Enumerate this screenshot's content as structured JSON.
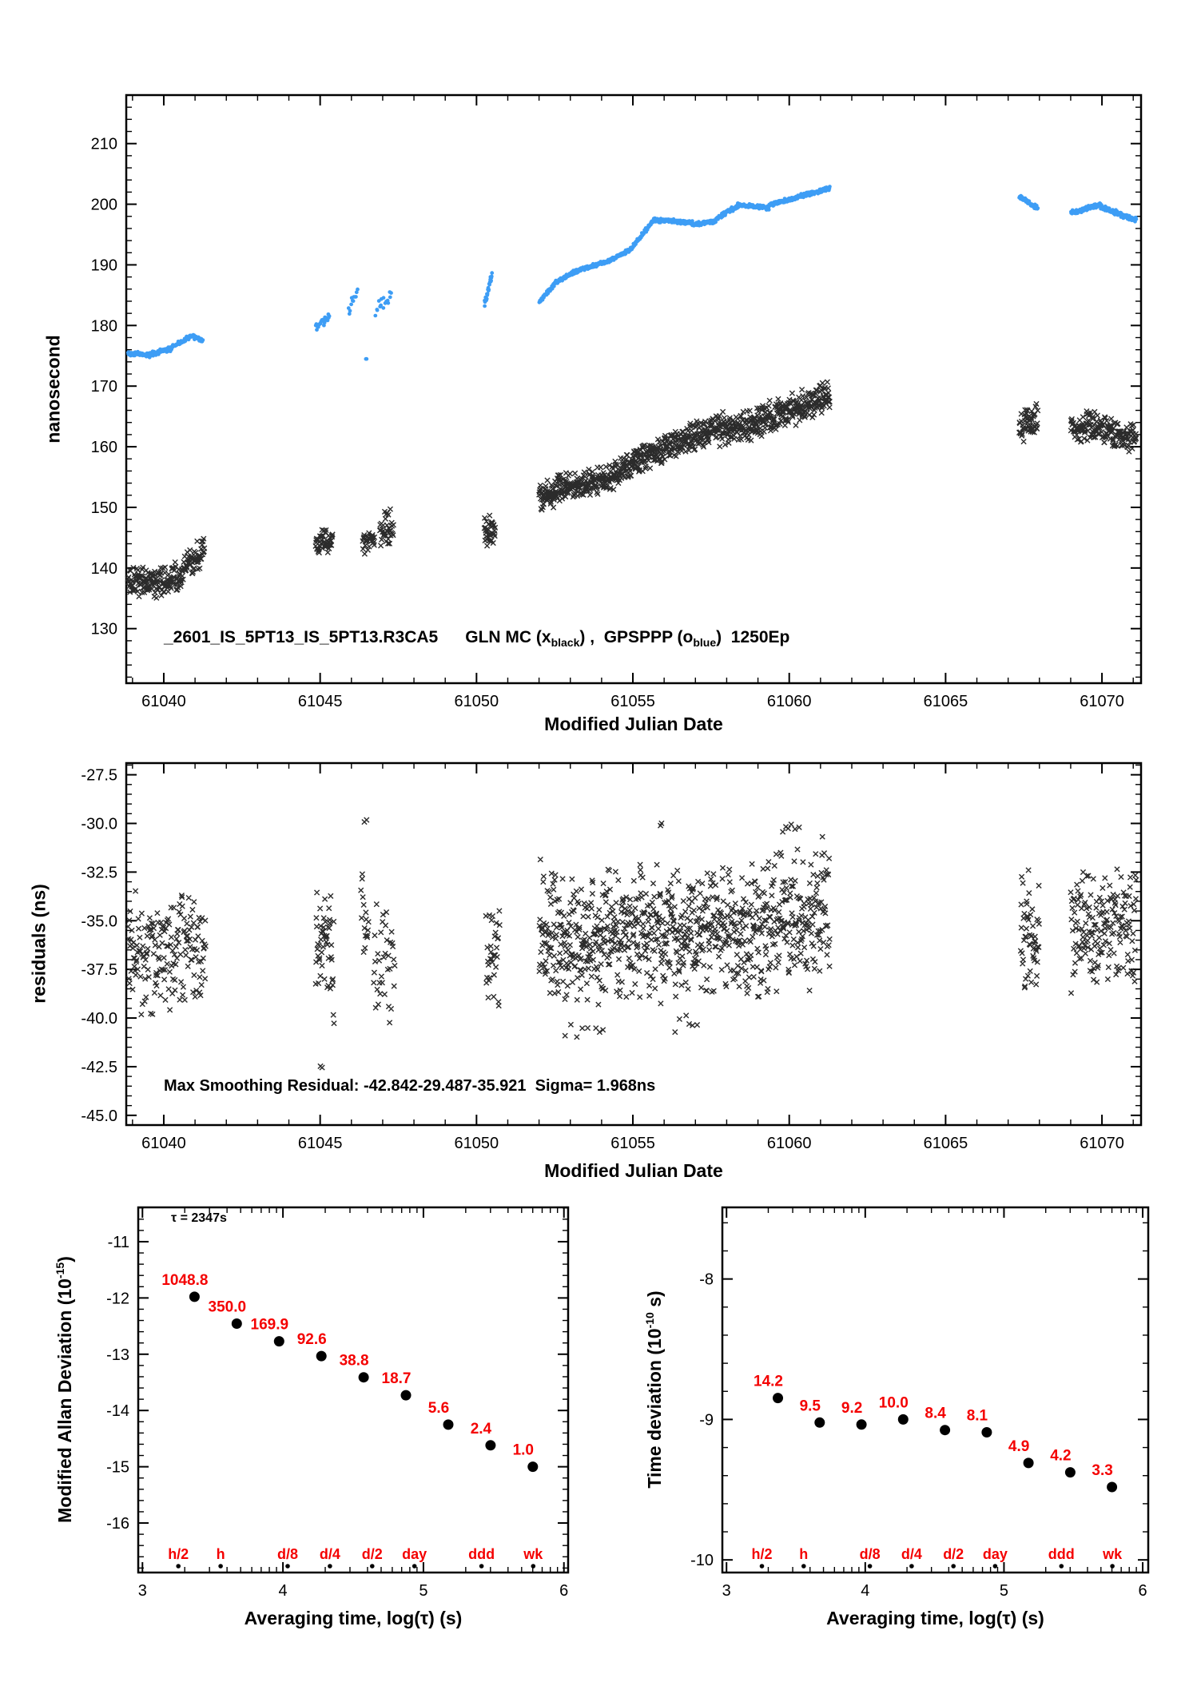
{
  "colors": {
    "gps_blue": "#3d9df5",
    "gln_black": "#2b2b2b",
    "accent_red": "#f40000",
    "axis": "#000000"
  },
  "chart_data": [
    {
      "id": "timeseries",
      "type": "scatter",
      "xlabel": "Modified Julian Date",
      "ylabel": "nanosecond",
      "xlim": [
        61038.8,
        61071.25
      ],
      "ylim": [
        121,
        218
      ],
      "xticks": [
        61040,
        61045,
        61050,
        61055,
        61060,
        61065,
        61070
      ],
      "xtick_labels": [
        "61040",
        "61045",
        "61050",
        "61055",
        "61060",
        "61065",
        "61070"
      ],
      "yticks": [
        130,
        140,
        150,
        160,
        170,
        180,
        190,
        200,
        210
      ],
      "ytick_labels": [
        "130",
        "140",
        "150",
        "160",
        "170",
        "180",
        "190",
        "200",
        "210"
      ],
      "xminor_step": 1,
      "yminor_step": 2,
      "annotation_parts": {
        "file": "_2601_IS_5PT13_IS_5PT13.R3CA5",
        "series1": "GLN MC (x",
        "sub1": "black",
        "mid": ") ,  GPSPPP (o",
        "sub2": "blue",
        "tail": ")  1250Ep"
      },
      "series": [
        {
          "name": "GPSPPP",
          "marker": "dot",
          "color": "#3d9df5",
          "seed": 42,
          "segments": [
            [
              61038.85,
              61039.6,
              175.4,
              175.1,
              70,
              0.45
            ],
            [
              61039.6,
              61040.25,
              175.3,
              176.2,
              60,
              0.45
            ],
            [
              61040.25,
              61040.95,
              176.4,
              178.4,
              60,
              0.45
            ],
            [
              61040.95,
              61041.25,
              178.2,
              177.4,
              28,
              0.45
            ],
            [
              61044.85,
              61045.3,
              179.9,
              181.3,
              26,
              0.9
            ],
            [
              61045.9,
              61046.2,
              182.5,
              185.8,
              12,
              1.2
            ],
            [
              61046.45,
              61046.5,
              174.6,
              174.6,
              2,
              0.2
            ],
            [
              61046.75,
              61047.3,
              182.3,
              185.2,
              16,
              1.3
            ],
            [
              61050.25,
              61050.5,
              183.3,
              188.6,
              26,
              0.9
            ],
            [
              61052.0,
              61052.5,
              183.8,
              186.8,
              55,
              0.4
            ],
            [
              61052.5,
              61053.3,
              187.0,
              189.3,
              80,
              0.4
            ],
            [
              61053.3,
              61054.2,
              189.2,
              190.6,
              85,
              0.4
            ],
            [
              61054.2,
              61054.95,
              190.6,
              192.6,
              70,
              0.4
            ],
            [
              61054.95,
              61055.65,
              192.8,
              197.2,
              68,
              0.4
            ],
            [
              61055.65,
              61056.9,
              197.4,
              197.0,
              115,
              0.4
            ],
            [
              61056.9,
              61057.65,
              196.6,
              197.2,
              70,
              0.4
            ],
            [
              61057.65,
              61058.35,
              197.6,
              199.7,
              65,
              0.4
            ],
            [
              61058.35,
              61059.35,
              199.8,
              199.4,
              95,
              0.45
            ],
            [
              61059.35,
              61060.25,
              199.9,
              201.1,
              85,
              0.4
            ],
            [
              61060.25,
              61061.3,
              201.2,
              202.6,
              95,
              0.4
            ],
            [
              61067.35,
              61067.95,
              201.3,
              199.2,
              50,
              0.5
            ],
            [
              61069.0,
              61069.95,
              198.6,
              199.9,
              85,
              0.45
            ],
            [
              61069.95,
              61071.1,
              199.6,
              197.3,
              100,
              0.5
            ]
          ]
        },
        {
          "name": "GLN MC",
          "marker": "x",
          "color": "#2b2b2b",
          "seed": 1337,
          "segments": [
            [
              61038.85,
              61039.7,
              138.2,
              137.8,
              80,
              3.0
            ],
            [
              61039.7,
              61040.6,
              137.6,
              138.8,
              82,
              3.0
            ],
            [
              61040.6,
              61041.3,
              139.8,
              142.8,
              62,
              2.8
            ],
            [
              61044.85,
              61045.4,
              143.8,
              144.6,
              50,
              2.6
            ],
            [
              61046.35,
              61046.75,
              144.2,
              145.0,
              28,
              2.2
            ],
            [
              61046.9,
              61047.35,
              145.6,
              146.4,
              34,
              2.6
            ],
            [
              61047.05,
              61047.25,
              149.0,
              149.6,
              5,
              0.8
            ],
            [
              61050.25,
              61050.6,
              145.8,
              146.4,
              36,
              2.8
            ],
            [
              61052.0,
              61052.6,
              151.3,
              152.8,
              64,
              2.6
            ],
            [
              61052.6,
              61053.6,
              153.6,
              154.0,
              95,
              2.7
            ],
            [
              61053.6,
              61054.6,
              153.8,
              155.8,
              95,
              2.7
            ],
            [
              61054.6,
              61055.6,
              156.2,
              158.8,
              95,
              2.7
            ],
            [
              61055.6,
              61056.6,
              158.8,
              161.2,
              95,
              2.7
            ],
            [
              61056.6,
              61057.6,
              161.2,
              163.0,
              95,
              2.8
            ],
            [
              61057.6,
              61058.6,
              162.6,
              163.6,
              95,
              3.0
            ],
            [
              61058.6,
              61059.4,
              163.2,
              165.2,
              80,
              3.0
            ],
            [
              61059.4,
              61060.3,
              164.8,
              166.6,
              85,
              3.0
            ],
            [
              61060.3,
              61061.3,
              166.2,
              168.6,
              92,
              3.2
            ],
            [
              61067.35,
              61067.95,
              163.6,
              164.4,
              55,
              3.0
            ],
            [
              61069.0,
              61070.05,
              163.2,
              163.6,
              92,
              2.8
            ],
            [
              61070.05,
              61071.1,
              162.8,
              161.4,
              92,
              2.8
            ]
          ]
        }
      ]
    },
    {
      "id": "residuals",
      "type": "scatter",
      "xlabel": "Modified Julian Date",
      "ylabel": "residuals (ns)",
      "xlim": [
        61038.8,
        61071.25
      ],
      "ylim": [
        -45.5,
        -26.9
      ],
      "xticks": [
        61040,
        61045,
        61050,
        61055,
        61060,
        61065,
        61070
      ],
      "xtick_labels": [
        "61040",
        "61045",
        "61050",
        "61055",
        "61060",
        "61065",
        "61070"
      ],
      "yticks": [
        -45.0,
        -42.5,
        -40.0,
        -37.5,
        -35.0,
        -32.5,
        -30.0,
        -27.5
      ],
      "ytick_labels": [
        "-45.0",
        "-42.5",
        "-40.0",
        "-37.5",
        "-35.0",
        "-32.5",
        "-30.0",
        "-27.5"
      ],
      "xminor_step": 1,
      "yminor_step": 0.5,
      "annotation": "Max Smoothing Residual: -42.842-29.487-35.921  Sigma= 1.968ns",
      "series": [
        {
          "name": "smoothing residuals",
          "marker": "x",
          "color": "#2b2b2b",
          "seed": 2024,
          "segments": [
            [
              61038.85,
              61040.1,
              -36.6,
              -36.8,
              95,
              3.6
            ],
            [
              61040.1,
              61041.35,
              -36.4,
              -36.2,
              92,
              3.6
            ],
            [
              61044.85,
              61045.45,
              -36.2,
              -37.0,
              52,
              3.8
            ],
            [
              61045.0,
              61045.1,
              -42.4,
              -42.4,
              2,
              0.3
            ],
            [
              61046.3,
              61046.55,
              -34.5,
              -36.0,
              16,
              3.0
            ],
            [
              61046.4,
              61046.5,
              -29.8,
              -29.8,
              2,
              0.2
            ],
            [
              61046.7,
              61047.4,
              -37.0,
              -37.5,
              36,
              3.2
            ],
            [
              61050.3,
              61050.75,
              -36.6,
              -37.2,
              34,
              2.8
            ],
            [
              61052.0,
              61053.5,
              -35.3,
              -35.8,
              150,
              3.6
            ],
            [
              61053.5,
              61055.0,
              -36.0,
              -35.5,
              150,
              3.6
            ],
            [
              61052.8,
              61054.2,
              -40.8,
              -40.5,
              8,
              0.9
            ],
            [
              61055.0,
              61056.5,
              -35.4,
              -35.9,
              148,
              3.8
            ],
            [
              61055.85,
              61055.95,
              -30.2,
              -30.2,
              2,
              0.3
            ],
            [
              61056.3,
              61057.2,
              -40.6,
              -40.3,
              6,
              0.8
            ],
            [
              61056.5,
              61058.0,
              -35.8,
              -35.4,
              148,
              3.7
            ],
            [
              61058.0,
              61059.5,
              -35.5,
              -35.2,
              148,
              3.8
            ],
            [
              61059.5,
              61061.3,
              -34.9,
              -34.6,
              165,
              4.0
            ],
            [
              61059.7,
              61060.4,
              -30.3,
              -30.0,
              6,
              0.7
            ],
            [
              61067.4,
              61068.0,
              -35.6,
              -35.4,
              55,
              3.4
            ],
            [
              61069.0,
              61070.0,
              -35.6,
              -35.3,
              88,
              3.4
            ],
            [
              61070.0,
              61071.1,
              -35.2,
              -35.6,
              90,
              3.4
            ]
          ]
        }
      ]
    },
    {
      "id": "mdev",
      "type": "scatter",
      "xlabel": "Averaging time, log(τ) (s)",
      "ylabel_pre": "Modified Allan Deviation (10",
      "ylabel_sup": "-15",
      "ylabel_post": ")",
      "xlim": [
        2.97,
        6.03
      ],
      "ylim": [
        -16.88,
        -10.39
      ],
      "xticks": [
        3,
        4,
        5,
        6
      ],
      "xtick_labels": [
        "3",
        "4",
        "5",
        "6"
      ],
      "yticks": [
        -16,
        -15,
        -14,
        -13,
        -12,
        -11
      ],
      "ytick_labels": [
        "-16",
        "-15",
        "-14",
        "-13",
        "-12",
        "-11"
      ],
      "xminor": "log",
      "yminor_step": 0.2,
      "annotation": "τ = 2347s",
      "taus_s": [
        2347,
        4694,
        9388,
        18776,
        37552,
        75104,
        150208,
        300416,
        600832
      ],
      "values": [
        1048.8,
        350.0,
        169.9,
        92.6,
        38.8,
        18.7,
        5.6,
        2.4,
        1.0
      ],
      "value_labels": [
        "1048.8",
        "350.0",
        "169.9",
        "92.6",
        "38.8",
        "18.7",
        "5.6",
        "2.4",
        "1.0"
      ],
      "log_offset": -15,
      "time_marks": [
        [
          "h/2",
          1800
        ],
        [
          "h",
          3600
        ],
        [
          "d/8",
          10800
        ],
        [
          "d/4",
          21600
        ],
        [
          "d/2",
          43200
        ],
        [
          "day",
          86400
        ],
        [
          "ddd",
          259200
        ],
        [
          "wk",
          604800
        ]
      ]
    },
    {
      "id": "tdev",
      "type": "scatter",
      "xlabel": "Averaging time, log(τ) (s)",
      "ylabel_pre": "Time deviation (10",
      "ylabel_sup": "-10",
      "ylabel_post": " s)",
      "xlim": [
        2.97,
        6.04
      ],
      "ylim": [
        -10.09,
        -7.49
      ],
      "xticks": [
        3,
        4,
        5,
        6
      ],
      "xtick_labels": [
        "3",
        "4",
        "5",
        "6"
      ],
      "yticks": [
        -10,
        -9,
        -8
      ],
      "ytick_labels": [
        "-10",
        "-9",
        "-8"
      ],
      "xminor": "log",
      "yminor_step": 0.2,
      "taus_s": [
        2347,
        4694,
        9388,
        18776,
        37552,
        75104,
        150208,
        300416,
        600832
      ],
      "values": [
        14.2,
        9.5,
        9.2,
        10.0,
        8.4,
        8.1,
        4.9,
        4.2,
        3.3
      ],
      "value_labels": [
        "14.2",
        "9.5",
        "9.2",
        "10.0",
        "8.4",
        "8.1",
        "4.9",
        "4.2",
        "3.3"
      ],
      "log_offset": -10,
      "time_marks": [
        [
          "h/2",
          1800
        ],
        [
          "h",
          3600
        ],
        [
          "d/8",
          10800
        ],
        [
          "d/4",
          21600
        ],
        [
          "d/2",
          43200
        ],
        [
          "day",
          86400
        ],
        [
          "ddd",
          259200
        ],
        [
          "wk",
          604800
        ]
      ]
    }
  ]
}
